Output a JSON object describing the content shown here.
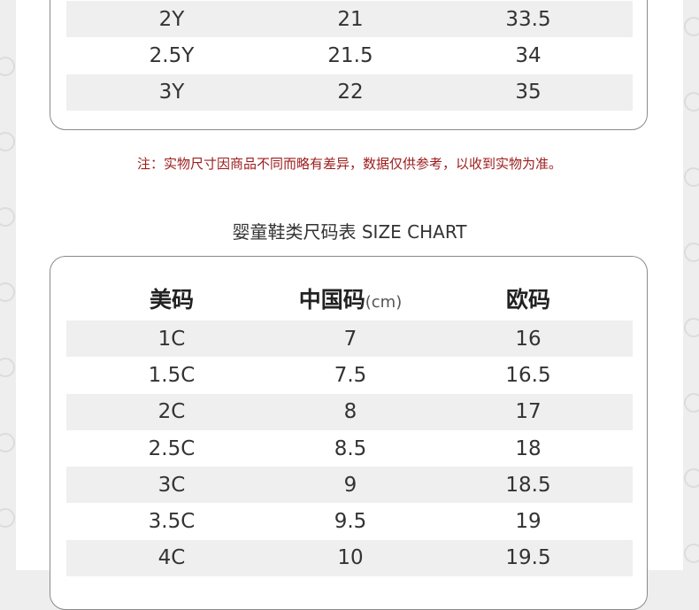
{
  "top_table": {
    "rows": [
      [
        "2Y",
        "21",
        "33.5"
      ],
      [
        "2.5Y",
        "21.5",
        "34"
      ],
      [
        "3Y",
        "22",
        "35"
      ]
    ]
  },
  "note": "注：实物尺寸因商品不同而略有差异，数据仅供参考，以收到实物为准。",
  "chart_title": "婴童鞋类尺码表 SIZE CHART",
  "bottom_table": {
    "headers": {
      "us": "美码",
      "cn": "中国码",
      "cn_unit": "(cm)",
      "eu": "欧码"
    },
    "rows": [
      [
        "1C",
        "7",
        "16"
      ],
      [
        "1.5C",
        "7.5",
        "16.5"
      ],
      [
        "2C",
        "8",
        "17"
      ],
      [
        "2.5C",
        "8.5",
        "18"
      ],
      [
        "3C",
        "9",
        "18.5"
      ],
      [
        "3.5C",
        "9.5",
        "19"
      ],
      [
        "4C",
        "10",
        "19.5"
      ]
    ]
  },
  "colors": {
    "note": "#9c1c1c",
    "row_alt": "#efefef",
    "border": "#8a8a8a"
  }
}
